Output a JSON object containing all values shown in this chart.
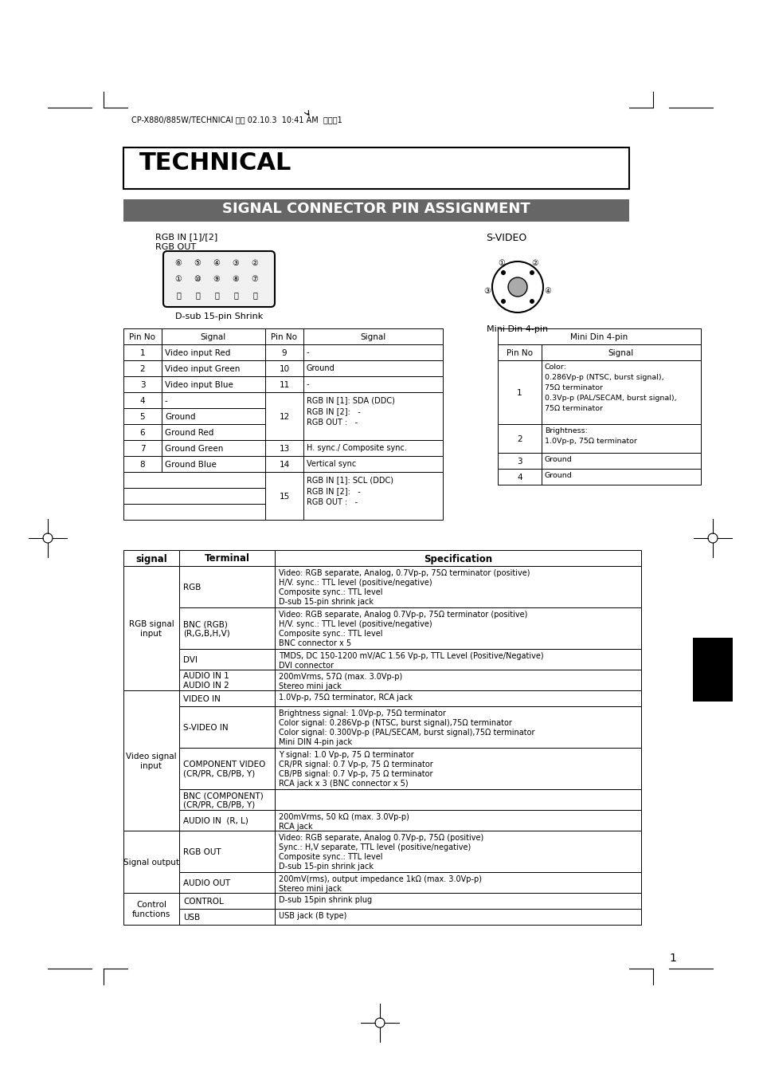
{
  "bg_color": "#ffffff",
  "page_margin_color": "#ffffff",
  "header_text": "CP-X880/885W/TECHNICAI 再校 02.10.3  10:41 AM  ページ1",
  "title_box_text": "TECHNICAL",
  "section_header_text": "SIGNAL CONNECTOR PIN ASSIGNMENT",
  "section_header_bg": "#666666",
  "section_header_color": "#ffffff",
  "left_connector_label1": "RGB IN [1]/[2]",
  "left_connector_label2": "RGB OUT",
  "left_connector_sublabel": "D-sub 15-pin Shrink",
  "right_connector_label": "S-VIDEO",
  "right_connector_sublabel": "Mini Din 4-pin",
  "dsub_table_headers": [
    "Pin No",
    "Signal",
    "Pin No",
    "Signal"
  ],
  "dsub_table_rows_left": [
    [
      "1",
      "Video input Red"
    ],
    [
      "2",
      "Video input Green"
    ],
    [
      "3",
      "Video input Blue"
    ],
    [
      "4",
      "-"
    ],
    [
      "5",
      "Ground"
    ],
    [
      "6",
      "Ground Red"
    ],
    [
      "7",
      "Ground Green"
    ],
    [
      "8",
      "Ground Blue"
    ]
  ],
  "dsub_table_rows_right": [
    [
      "9",
      "-"
    ],
    [
      "10",
      "Ground"
    ],
    [
      "11",
      "-"
    ],
    [
      "12",
      "RGB IN [1]: SDA (DDC)\nRGB IN [2]:   -\nRGB OUT :   -"
    ],
    [
      "13",
      "H. sync./ Composite sync."
    ],
    [
      "14",
      "Vertical sync"
    ],
    [
      "15",
      "RGB IN [1]: SCL (DDC)\nRGB IN [2]:   -\nRGB OUT :   -"
    ]
  ],
  "mini_din_table_header": "Mini Din 4-pin",
  "mini_din_table_col_headers": [
    "Pin No",
    "Signal"
  ],
  "mini_din_table_rows": [
    [
      "1",
      "Color:\n0.286Vp-p (NTSC, burst signal),\n75Ω terminator\n0.3Vp-p (PAL/SECAM, burst signal),\n75Ω terminator"
    ],
    [
      "2",
      "Brightness:\n1.0Vp-p, 75Ω terminator"
    ],
    [
      "3",
      "Ground"
    ],
    [
      "4",
      "Ground"
    ]
  ],
  "spec_table_headers": [
    "signal",
    "Terminal",
    "Specification"
  ],
  "spec_table_rows": [
    [
      "RGB signal\ninput",
      "RGB",
      "Video: RGB separate, Analog, 0.7Vp-p, 75Ω terminator (positive)\nH/V. sync.: TTL level (positive/negative)\nComposite sync.: TTL level\nD-sub 15-pin shrink jack"
    ],
    [
      "RGB signal\ninput",
      "BNC (RGB)\n(R,G,B,H,V)",
      "Video: RGB separate, Analog 0.7Vp-p, 75Ω terminator (positive)\nH/V. sync.: TTL level (positive/negative)\nComposite sync.: TTL level\nBNC connector x 5"
    ],
    [
      "RGB signal\ninput",
      "DVI",
      "TMDS, DC 150-1200 mV/AC 1.56 Vp-p, TTL Level (Positive/Negative)\nDVI connector"
    ],
    [
      "RGB signal\ninput",
      "AUDIO IN 1\nAUDIO IN 2",
      "200mVrms, 57Ω (max. 3.0Vp-p)\nStereo mini jack"
    ],
    [
      "Video signal\ninput",
      "VIDEO IN",
      "1.0Vp-p, 75Ω terminator, RCA jack"
    ],
    [
      "Video signal\ninput",
      "S-VIDEO IN",
      "Brightness signal: 1.0Vp-p, 75Ω terminator\nColor signal: 0.286Vp-p (NTSC, burst signal),75Ω terminator\nColor signal: 0.300Vp-p (PAL/SECAM, burst signal),75Ω terminator\nMini DIN 4-pin jack"
    ],
    [
      "Video signal\ninput",
      "COMPONENT VIDEO\n(CR/PR, CB/PB, Y)",
      "Y signal: 1.0 Vp-p, 75 Ω terminator\nCR/PR signal: 0.7 Vp-p, 75 Ω terminator\nCB/PB signal: 0.7 Vp-p, 75 Ω terminator\nRCA jack x 3 (BNC connector x 5)"
    ],
    [
      "Video signal\ninput",
      "BNC (COMPONENT)\n(CR/PR, CB/PB, Y)",
      ""
    ],
    [
      "Video signal\ninput",
      "AUDIO IN  (R, L)",
      "200mVrms, 50 kΩ (max. 3.0Vp-p)\nRCA jack"
    ],
    [
      "Signal output",
      "RGB OUT",
      "Video: RGB separate, Analog 0.7Vp-p, 75Ω (positive)\nSync.: H,V separate, TTL level (positive/negative)\nComposite sync.: TTL level\nD-sub 15-pin shrink jack"
    ],
    [
      "Signal output",
      "AUDIO OUT",
      "200mV(rms), output impedance 1kΩ (max. 3.0Vp-p)\nStereo mini jack"
    ],
    [
      "Control\nfunctions",
      "CONTROL",
      "D-sub 15pin shrink plug"
    ],
    [
      "Control\nfunctions",
      "USB",
      "USB jack (B type)"
    ]
  ],
  "page_number": "1",
  "black_rect_color": "#000000"
}
